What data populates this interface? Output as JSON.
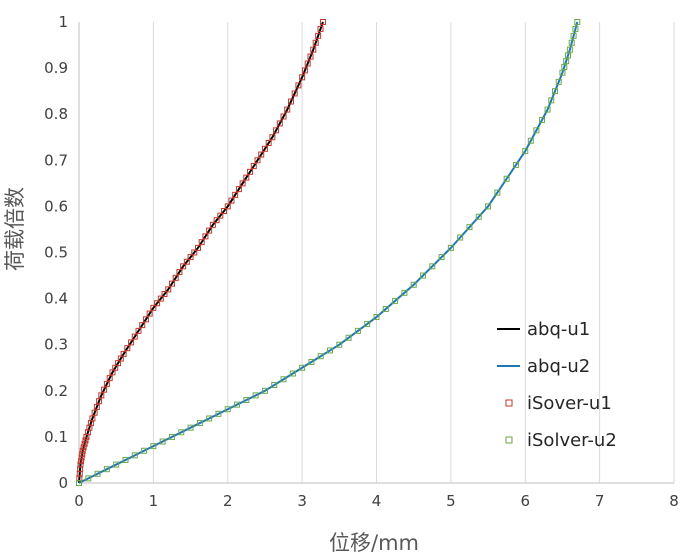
{
  "chart_data": {
    "type": "line",
    "title": "",
    "xlabel": "位移/mm",
    "ylabel": "荷载倍数",
    "xlim": [
      0,
      8
    ],
    "ylim": [
      0,
      1
    ],
    "x_ticks": [
      0,
      1,
      2,
      3,
      4,
      5,
      6,
      7,
      8
    ],
    "y_ticks": [
      0,
      0.1,
      0.2,
      0.3,
      0.4,
      0.5,
      0.6,
      0.7,
      0.8,
      0.9,
      1
    ],
    "x_tick_labels": [
      "0",
      "1",
      "2",
      "3",
      "4",
      "5",
      "6",
      "7",
      "8"
    ],
    "y_tick_labels": [
      "0",
      "0.1",
      "0.2",
      "0.3",
      "0.4",
      "0.5",
      "0.6",
      "0.7",
      "0.8",
      "0.9",
      "1"
    ],
    "grid": {
      "vertical": true,
      "horizontal": false
    },
    "legend_position": "right",
    "series": [
      {
        "name": "abq-u1",
        "style": "line",
        "color": "#000000",
        "x": [
          0,
          0.02,
          0.05,
          0.1,
          0.18,
          0.3,
          0.45,
          0.6,
          0.8,
          1.0,
          1.2,
          1.4,
          1.6,
          1.8,
          2.0,
          2.2,
          2.4,
          2.6,
          2.8,
          3.0,
          3.15,
          3.28
        ],
        "y": [
          0,
          0.04,
          0.07,
          0.1,
          0.14,
          0.19,
          0.24,
          0.28,
          0.33,
          0.38,
          0.42,
          0.47,
          0.51,
          0.56,
          0.6,
          0.65,
          0.7,
          0.75,
          0.81,
          0.88,
          0.94,
          1.0
        ]
      },
      {
        "name": "abq-u2",
        "style": "line",
        "color": "#1f77b4",
        "x": [
          0,
          0.5,
          1.0,
          1.5,
          2.0,
          2.5,
          3.0,
          3.5,
          4.0,
          4.5,
          5.0,
          5.5,
          6.0,
          6.3,
          6.5,
          6.6,
          6.7
        ],
        "y": [
          0,
          0.04,
          0.08,
          0.12,
          0.16,
          0.2,
          0.25,
          0.3,
          0.36,
          0.43,
          0.51,
          0.6,
          0.72,
          0.81,
          0.89,
          0.94,
          1.0
        ]
      },
      {
        "name": "iSover-u1",
        "style": "marker",
        "color": "#c0392b",
        "x": [
          0,
          0.02,
          0.05,
          0.1,
          0.18,
          0.3,
          0.45,
          0.6,
          0.8,
          1.0,
          1.2,
          1.4,
          1.6,
          1.8,
          2.0,
          2.2,
          2.4,
          2.6,
          2.8,
          3.0,
          3.15,
          3.28
        ],
        "y": [
          0,
          0.04,
          0.07,
          0.1,
          0.14,
          0.19,
          0.24,
          0.28,
          0.33,
          0.38,
          0.42,
          0.47,
          0.51,
          0.56,
          0.6,
          0.65,
          0.7,
          0.75,
          0.81,
          0.88,
          0.94,
          1.0
        ]
      },
      {
        "name": "iSolver-u2",
        "style": "marker",
        "color": "#6aa84f",
        "x": [
          0,
          0.5,
          1.0,
          1.5,
          2.0,
          2.5,
          3.0,
          3.5,
          4.0,
          4.5,
          5.0,
          5.5,
          6.0,
          6.3,
          6.5,
          6.6,
          6.7
        ],
        "y": [
          0,
          0.04,
          0.08,
          0.12,
          0.16,
          0.2,
          0.25,
          0.3,
          0.36,
          0.43,
          0.51,
          0.6,
          0.72,
          0.81,
          0.89,
          0.94,
          1.0
        ]
      }
    ]
  }
}
